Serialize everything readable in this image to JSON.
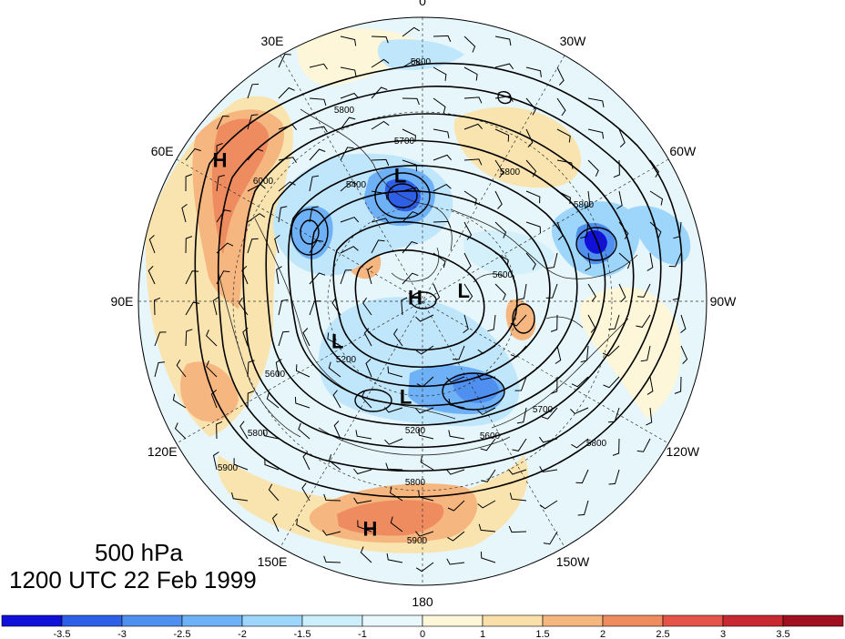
{
  "map": {
    "level": "500 hPa",
    "valid_time": "1200 UTC 22 Feb 1999",
    "longitude_labels": [
      {
        "text": "0",
        "angle": 0
      },
      {
        "text": "30W",
        "angle": -30
      },
      {
        "text": "60W",
        "angle": -60
      },
      {
        "text": "90W",
        "angle": -90
      },
      {
        "text": "120W",
        "angle": -120
      },
      {
        "text": "150W",
        "angle": -150
      },
      {
        "text": "180",
        "angle": 180
      },
      {
        "text": "150E",
        "angle": 150
      },
      {
        "text": "120E",
        "angle": 120
      },
      {
        "text": "90E",
        "angle": 90
      },
      {
        "text": "60E",
        "angle": 60
      },
      {
        "text": "30E",
        "angle": 30
      }
    ],
    "centers": [
      {
        "type": "H",
        "name": "high-siberia",
        "lon": 55,
        "dist": 0.87
      },
      {
        "type": "H",
        "name": "high-north-pacific",
        "lon": 167,
        "dist": 0.82
      },
      {
        "type": "H",
        "name": "high-pole",
        "lon": 60,
        "dist": 0.03
      },
      {
        "type": "L",
        "name": "low-europe",
        "lon": 10,
        "dist": 0.45
      },
      {
        "type": "L",
        "name": "low-canada",
        "lon": -75,
        "dist": 0.15
      },
      {
        "type": "L",
        "name": "low-east-siberia",
        "lon": 115,
        "dist": 0.33
      },
      {
        "type": "L",
        "name": "low-alaska",
        "lon": 170,
        "dist": 0.34
      }
    ],
    "contour_labels": [
      "5800",
      "5700",
      "5600",
      "5400",
      "5200",
      "5900",
      "6000"
    ]
  },
  "colorbar": {
    "ticks": [
      "-3.5",
      "-3",
      "-2.5",
      "-2",
      "-1.5",
      "-1",
      "0",
      "1",
      "1.5",
      "2",
      "2.5",
      "3",
      "3.5"
    ],
    "colors": [
      "#1010d8",
      "#2f5fe6",
      "#4f8ff0",
      "#6fb1f6",
      "#9ed6fb",
      "#cdeffc",
      "#e8f8fd",
      "#fdf6d8",
      "#f9e0a8",
      "#f6b680",
      "#ee8c60",
      "#e45448",
      "#c82830",
      "#a01020"
    ]
  }
}
